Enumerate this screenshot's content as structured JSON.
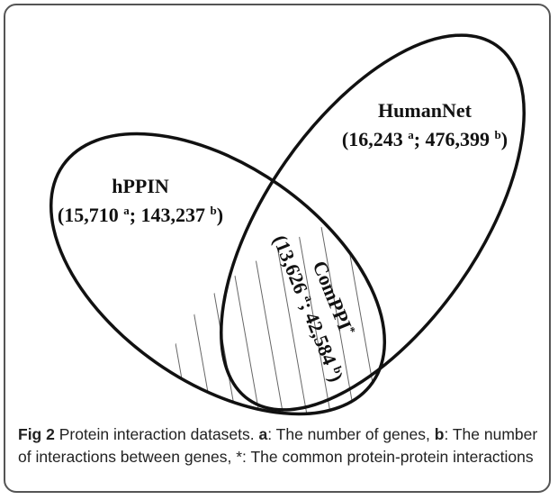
{
  "figure": {
    "humannet": {
      "name": "HumanNet",
      "open": "(16,243 ",
      "sup1": "a",
      "mid": "; 476,399 ",
      "sup2": "b",
      "close": ")"
    },
    "hppin": {
      "name": "hPPIN",
      "open": "(15,710 ",
      "sup1": "a",
      "mid": "; 143,237 ",
      "sup2": "b",
      "close": ")"
    },
    "comppi": {
      "name": "ComPPI",
      "name_sup": "*",
      "open": "(13,626 ",
      "sup1": "a",
      "mid": "; 42,584 ",
      "sup2": "b",
      "close": ")"
    }
  },
  "caption": {
    "label": "Fig 2",
    "text1": " Protein interaction datasets. ",
    "a": "a",
    "text2": ": The number of genes, ",
    "b": "b",
    "text3": ": The number of interactions between genes, *: The common protein-protein interactions"
  }
}
